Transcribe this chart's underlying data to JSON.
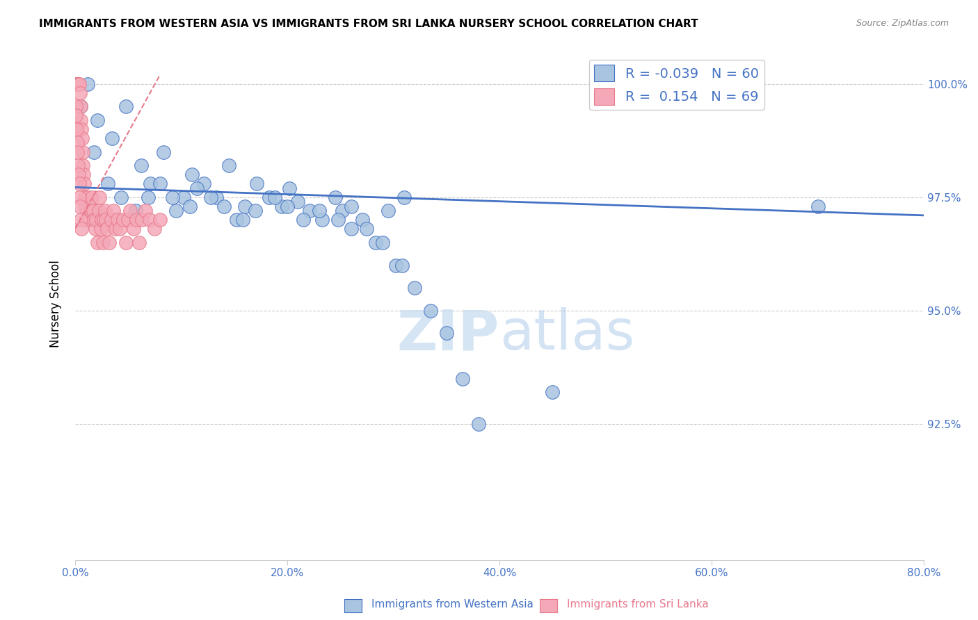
{
  "title": "IMMIGRANTS FROM WESTERN ASIA VS IMMIGRANTS FROM SRI LANKA NURSERY SCHOOL CORRELATION CHART",
  "source": "Source: ZipAtlas.com",
  "xlabel_blue": "Immigrants from Western Asia",
  "xlabel_pink": "Immigrants from Sri Lanka",
  "ylabel": "Nursery School",
  "legend_blue_R": "-0.039",
  "legend_blue_N": "60",
  "legend_pink_R": "0.154",
  "legend_pink_N": "69",
  "xmin": 0.0,
  "xmax": 80.0,
  "ymin": 89.5,
  "ymax": 100.8,
  "yticks": [
    92.5,
    95.0,
    97.5,
    100.0
  ],
  "xticks": [
    0.0,
    20.0,
    40.0,
    60.0,
    80.0
  ],
  "blue_color": "#a8c4e0",
  "pink_color": "#f4a8b8",
  "blue_line_color": "#4472c4",
  "pink_line_color": "#e87a8c",
  "watermark_zip": "ZIP",
  "watermark_atlas": "atlas",
  "blue_scatter_x": [
    1.2,
    2.1,
    3.5,
    4.8,
    6.2,
    7.1,
    8.3,
    9.5,
    10.2,
    11.0,
    12.1,
    13.3,
    14.5,
    15.2,
    16.0,
    17.1,
    18.3,
    19.5,
    20.2,
    21.0,
    22.1,
    23.3,
    24.5,
    25.2,
    26.0,
    27.1,
    28.3,
    29.5,
    30.2,
    31.0,
    0.5,
    1.8,
    3.1,
    4.3,
    5.7,
    6.9,
    8.0,
    9.2,
    10.8,
    11.5,
    12.8,
    14.0,
    15.8,
    17.0,
    18.8,
    20.0,
    21.5,
    23.0,
    24.8,
    26.0,
    27.5,
    29.0,
    30.8,
    32.0,
    33.5,
    35.0,
    36.5,
    38.0,
    45.0,
    70.0
  ],
  "blue_scatter_y": [
    100.0,
    99.2,
    98.8,
    99.5,
    98.2,
    97.8,
    98.5,
    97.2,
    97.5,
    98.0,
    97.8,
    97.5,
    98.2,
    97.0,
    97.3,
    97.8,
    97.5,
    97.3,
    97.7,
    97.4,
    97.2,
    97.0,
    97.5,
    97.2,
    96.8,
    97.0,
    96.5,
    97.2,
    96.0,
    97.5,
    99.5,
    98.5,
    97.8,
    97.5,
    97.2,
    97.5,
    97.8,
    97.5,
    97.3,
    97.7,
    97.5,
    97.3,
    97.0,
    97.2,
    97.5,
    97.3,
    97.0,
    97.2,
    97.0,
    97.3,
    96.8,
    96.5,
    96.0,
    95.5,
    95.0,
    94.5,
    93.5,
    92.5,
    93.2,
    97.3
  ],
  "pink_scatter_x": [
    0.1,
    0.15,
    0.2,
    0.25,
    0.3,
    0.35,
    0.4,
    0.45,
    0.5,
    0.55,
    0.6,
    0.65,
    0.7,
    0.75,
    0.8,
    0.85,
    0.9,
    0.95,
    1.0,
    1.1,
    1.2,
    1.3,
    1.4,
    1.5,
    1.6,
    1.7,
    1.8,
    1.9,
    2.0,
    2.1,
    2.2,
    2.3,
    2.4,
    2.5,
    2.6,
    2.7,
    2.8,
    2.9,
    3.0,
    3.2,
    3.4,
    3.6,
    3.8,
    4.0,
    4.2,
    4.5,
    4.8,
    5.0,
    5.2,
    5.5,
    5.8,
    6.0,
    6.3,
    6.6,
    7.0,
    7.5,
    8.0,
    0.05,
    0.08,
    0.12,
    0.18,
    0.22,
    0.28,
    0.32,
    0.38,
    0.42,
    0.48,
    0.52,
    0.58
  ],
  "pink_scatter_y": [
    100.0,
    100.0,
    100.0,
    100.0,
    100.0,
    100.0,
    100.0,
    99.8,
    99.5,
    99.2,
    99.0,
    98.8,
    98.5,
    98.2,
    98.0,
    97.8,
    97.5,
    97.3,
    97.0,
    97.2,
    97.5,
    97.0,
    97.3,
    97.2,
    97.5,
    97.2,
    97.0,
    96.8,
    97.0,
    96.5,
    97.2,
    97.5,
    96.8,
    97.0,
    96.5,
    97.0,
    97.2,
    97.0,
    96.8,
    96.5,
    97.0,
    97.2,
    96.8,
    97.0,
    96.8,
    97.0,
    96.5,
    97.0,
    97.2,
    96.8,
    97.0,
    96.5,
    97.0,
    97.2,
    97.0,
    96.8,
    97.0,
    99.5,
    99.3,
    99.0,
    98.7,
    98.5,
    98.2,
    98.0,
    97.8,
    97.5,
    97.3,
    97.0,
    96.8
  ],
  "blue_trendline_x": [
    0.0,
    80.0
  ],
  "blue_trendline_y": [
    97.72,
    97.1
  ],
  "pink_trendline_x": [
    0.0,
    8.0
  ],
  "pink_trendline_y": [
    96.8,
    100.2
  ]
}
